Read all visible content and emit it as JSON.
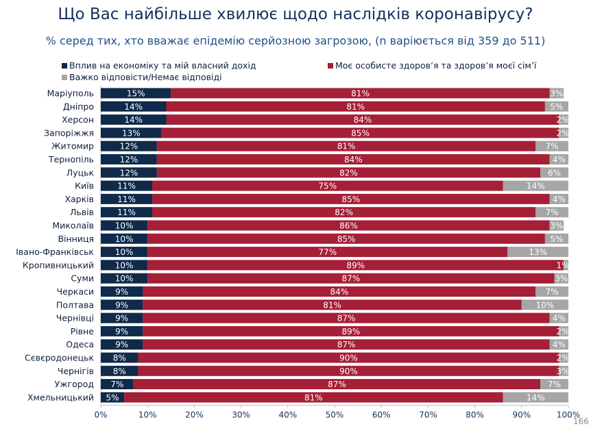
{
  "title": "Що Вас найбільше хвилює щодо наслідків коронавірусу?",
  "subtitle": "% серед тих, хто вважає епідемію серйозною загрозою, (n варіюється від 359 до 511)",
  "page_number": "166",
  "chart_data": {
    "type": "bar",
    "orientation": "horizontal",
    "stacked": true,
    "categories": [
      "Маріуполь",
      "Дніпро",
      "Херсон",
      "Запоріжжя",
      "Житомир",
      "Тернопіль",
      "Луцьк",
      "Київ",
      "Харків",
      "Львів",
      "Миколаїв",
      "Вінниця",
      "Івано-Франківськ",
      "Кропивницький",
      "Суми",
      "Черкаси",
      "Полтава",
      "Чернівці",
      "Рівне",
      "Одеса",
      "Сєвєродонецьк",
      "Чернігів",
      "Ужгород",
      "Хмельницький"
    ],
    "series": [
      {
        "name": "Вплив на економіку та мій власний дохід",
        "color": "#0f2a4b",
        "values": [
          15,
          14,
          14,
          13,
          12,
          12,
          12,
          11,
          11,
          11,
          10,
          10,
          10,
          10,
          10,
          9,
          9,
          9,
          9,
          9,
          8,
          8,
          7,
          5
        ]
      },
      {
        "name": "Моє особисте здоров’я та здоров’я моєї сім’ї",
        "color": "#a51f36",
        "values": [
          81,
          81,
          84,
          85,
          81,
          84,
          82,
          75,
          85,
          82,
          86,
          85,
          77,
          89,
          87,
          84,
          81,
          87,
          89,
          87,
          90,
          90,
          87,
          81
        ]
      },
      {
        "name": "Важко відповісти/Немає відповіді",
        "color": "#a6a6a6",
        "values": [
          3,
          5,
          2,
          2,
          7,
          4,
          6,
          14,
          4,
          7,
          3,
          5,
          13,
          1,
          3,
          7,
          10,
          4,
          2,
          4,
          2,
          3,
          7,
          14
        ]
      }
    ],
    "xlim": [
      0,
      100
    ],
    "xticks": [
      "0%",
      "10%",
      "20%",
      "30%",
      "40%",
      "50%",
      "60%",
      "70%",
      "80%",
      "90%",
      "100%"
    ],
    "data_labels": true,
    "legend_position": "top",
    "grid": false
  }
}
